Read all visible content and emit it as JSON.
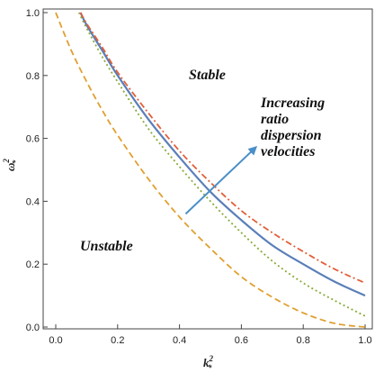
{
  "chart_data": {
    "type": "line",
    "xlabel": "k",
    "xlabel_sup": "2",
    "xlabel_sub": "*",
    "ylabel": "ω",
    "ylabel_sup": "2",
    "ylabel_sub": "*",
    "xlim": [
      0,
      1
    ],
    "ylim": [
      0,
      1
    ],
    "x_ticks": [
      0.0,
      0.2,
      0.4,
      0.6,
      0.8,
      1.0
    ],
    "x_tick_labels": [
      "0.0",
      "0.2",
      "0.4",
      "0.6",
      "0.8",
      "1.0"
    ],
    "y_ticks": [
      0.0,
      0.2,
      0.4,
      0.6,
      0.8,
      1.0
    ],
    "y_tick_labels": [
      "0.0",
      "0.2",
      "0.4",
      "0.6",
      "0.8",
      "1.0"
    ],
    "grid": false,
    "legend": "none",
    "annotations": {
      "stable": "Stable",
      "unstable": "Unstable",
      "increasing_line1": "Increasing",
      "increasing_line2": "ratio",
      "increasing_line3": "dispersion",
      "increasing_line4": "velocities"
    },
    "arrow": {
      "from": [
        0.42,
        0.36
      ],
      "to": [
        0.645,
        0.57
      ],
      "color": "#4a8fc7"
    },
    "series": [
      {
        "style": "dashed",
        "color": "#e0a030",
        "x": [
          0.0,
          0.05,
          0.1,
          0.15,
          0.2,
          0.3,
          0.4,
          0.5,
          0.6,
          0.7,
          0.8,
          0.9,
          1.0
        ],
        "y": [
          1.0,
          0.88,
          0.78,
          0.69,
          0.61,
          0.47,
          0.35,
          0.25,
          0.16,
          0.095,
          0.045,
          0.012,
          0.0
        ]
      },
      {
        "style": "dotted",
        "color": "#8aaa3a",
        "x": [
          0.075,
          0.1,
          0.15,
          0.2,
          0.3,
          0.4,
          0.5,
          0.6,
          0.7,
          0.8,
          0.9,
          1.0
        ],
        "y": [
          1.0,
          0.95,
          0.86,
          0.78,
          0.63,
          0.51,
          0.4,
          0.3,
          0.21,
          0.14,
          0.085,
          0.035
        ]
      },
      {
        "style": "solid",
        "color": "#5a7fb8",
        "x": [
          0.08,
          0.1,
          0.15,
          0.2,
          0.3,
          0.4,
          0.5,
          0.6,
          0.7,
          0.8,
          0.9,
          1.0
        ],
        "y": [
          1.0,
          0.96,
          0.88,
          0.8,
          0.66,
          0.54,
          0.43,
          0.34,
          0.26,
          0.2,
          0.145,
          0.1
        ]
      },
      {
        "style": "dashdot",
        "color": "#e0603a",
        "x": [
          0.08,
          0.1,
          0.15,
          0.2,
          0.3,
          0.4,
          0.5,
          0.6,
          0.7,
          0.8,
          0.9,
          1.0
        ],
        "y": [
          1.0,
          0.965,
          0.89,
          0.81,
          0.68,
          0.56,
          0.46,
          0.37,
          0.3,
          0.24,
          0.185,
          0.14
        ]
      }
    ]
  }
}
